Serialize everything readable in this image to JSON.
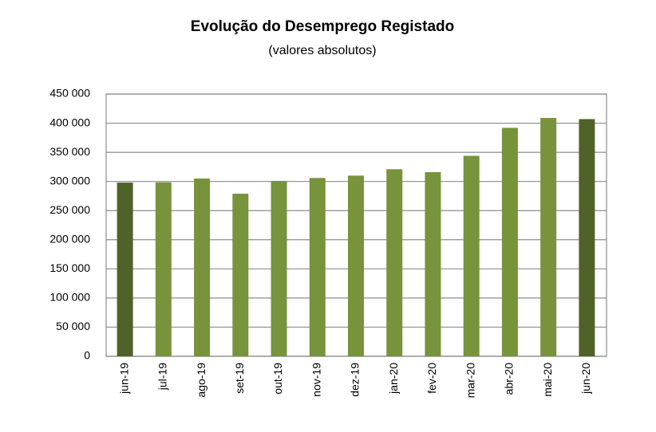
{
  "chart_data": {
    "type": "bar",
    "title": "Evolução do Desemprego Registado",
    "subtitle": "(valores absolutos)",
    "categories": [
      "jun-19",
      "jul-19",
      "ago-19",
      "set-19",
      "out-19",
      "nov-19",
      "dez-19",
      "jan-20",
      "fev-20",
      "mar-20",
      "abr-20",
      "mai-20",
      "jun-20"
    ],
    "values": [
      298000,
      298500,
      305000,
      279000,
      301000,
      306000,
      310000,
      321000,
      316000,
      344000,
      392000,
      409000,
      407000
    ],
    "colors": [
      "#4f6228",
      "#77933c",
      "#77933c",
      "#77933c",
      "#77933c",
      "#77933c",
      "#77933c",
      "#77933c",
      "#77933c",
      "#77933c",
      "#77933c",
      "#77933c",
      "#4f6228"
    ],
    "ylim": [
      0,
      450000
    ],
    "yticks": [
      0,
      {
        "value": 50000,
        "label": "50 000"
      },
      {
        "value": 100000,
        "label": "100 000"
      },
      {
        "value": 150000,
        "label": "150 000"
      },
      {
        "value": 200000,
        "label": "200 000"
      },
      {
        "value": 250000,
        "label": "250 000"
      },
      {
        "value": 300000,
        "label": "300 000"
      },
      {
        "value": 350000,
        "label": "350 000"
      },
      {
        "value": 400000,
        "label": "400 000"
      },
      {
        "value": 450000,
        "label": "450 000"
      }
    ],
    "grid": true
  }
}
